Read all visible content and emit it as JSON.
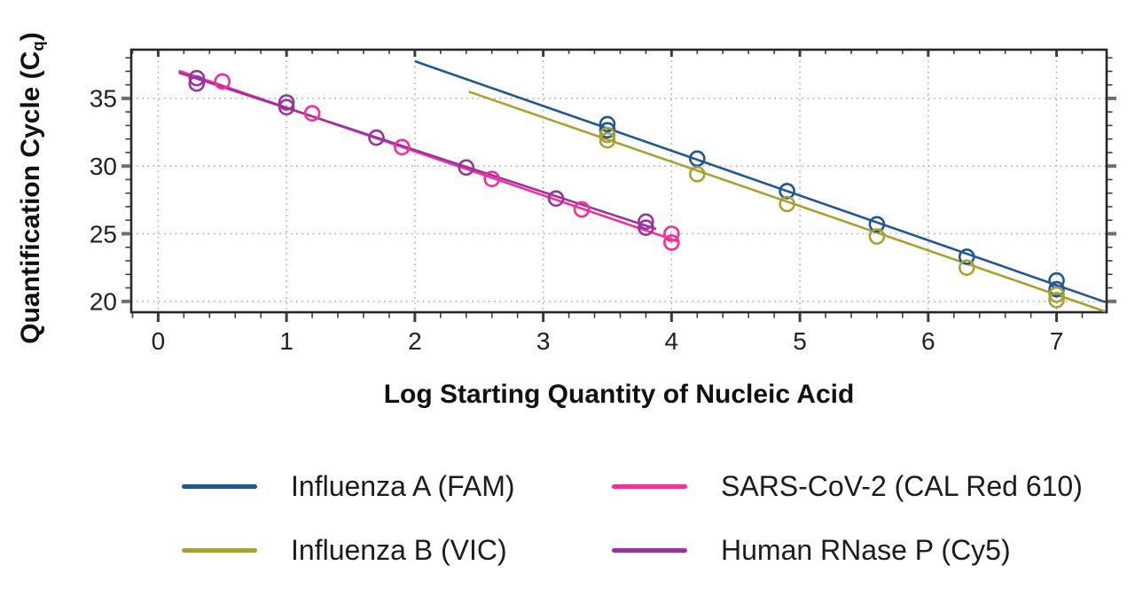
{
  "figure": {
    "y_axis_title_main": "Quantification Cycle (C",
    "y_axis_title_sub": "q",
    "y_axis_title_close": ")",
    "x_axis_title": "Log Starting Quantity of Nucleic Acid"
  },
  "colors": {
    "background": "#ffffff",
    "axis_border": "#262626",
    "grid": "#a9a9a9",
    "tick": "#3c3c3c",
    "text": "#1f1f1f",
    "influenza_a": "#1f5795",
    "influenza_b": "#a8a133",
    "sars_cov_2": "#f72e96",
    "human_rnase_p": "#9933a2"
  },
  "chart_data": {
    "type": "scatter",
    "title": "",
    "xlabel": "Log Starting Quantity of Nucleic Acid",
    "ylabel": "Quantification Cycle (Cq)",
    "xlim": [
      -0.21,
      7.39
    ],
    "ylim": [
      19.2,
      38.6
    ],
    "x_ticks": [
      0,
      1,
      2,
      3,
      4,
      5,
      6,
      7
    ],
    "y_ticks": [
      20,
      25,
      30,
      35
    ],
    "x_minor_step": 0.2,
    "y_minor_step": 1,
    "grid": "dotted lines at major ticks, both axes",
    "legend_position": "bottom, two columns",
    "marker": "open circle",
    "series": [
      {
        "name": "Influenza A (FAM)",
        "color": "#1f5795",
        "points": [
          [
            3.5,
            33.1
          ],
          [
            3.5,
            32.65
          ],
          [
            4.2,
            30.55
          ],
          [
            4.9,
            28.15
          ],
          [
            5.6,
            25.7
          ],
          [
            6.3,
            23.3
          ],
          [
            7.0,
            21.55
          ],
          [
            7.0,
            20.9
          ]
        ],
        "trend_line": [
          [
            2.0,
            37.75
          ],
          [
            7.38,
            19.95
          ]
        ]
      },
      {
        "name": "Influenza B (VIC)",
        "color": "#a8a133",
        "points": [
          [
            3.5,
            32.3
          ],
          [
            3.5,
            31.9
          ],
          [
            4.2,
            29.4
          ],
          [
            4.9,
            27.2
          ],
          [
            5.6,
            24.8
          ],
          [
            6.3,
            22.5
          ],
          [
            7.0,
            20.5
          ],
          [
            7.0,
            20.1
          ]
        ],
        "trend_line": [
          [
            2.42,
            35.5
          ],
          [
            7.38,
            19.25
          ]
        ]
      },
      {
        "name": "SARS-CoV-2 (CAL Red 610)",
        "color": "#f72e96",
        "points": [
          [
            0.5,
            36.25
          ],
          [
            1.2,
            33.9
          ],
          [
            1.9,
            31.4
          ],
          [
            2.6,
            29.05
          ],
          [
            3.3,
            26.8
          ],
          [
            4.0,
            25.0
          ],
          [
            4.0,
            24.35
          ]
        ],
        "trend_line": [
          [
            0.16,
            37.05
          ],
          [
            4.06,
            24.4
          ]
        ]
      },
      {
        "name": "Human RNase P (Cy5)",
        "color": "#9933a2",
        "points": [
          [
            0.3,
            36.5
          ],
          [
            0.3,
            36.1
          ],
          [
            1.0,
            34.7
          ],
          [
            1.0,
            34.35
          ],
          [
            1.7,
            32.1
          ],
          [
            2.4,
            29.9
          ],
          [
            3.1,
            27.6
          ],
          [
            3.8,
            25.9
          ],
          [
            3.8,
            25.45
          ]
        ],
        "trend_line": [
          [
            0.16,
            36.9
          ],
          [
            3.88,
            25.35
          ]
        ]
      }
    ]
  }
}
